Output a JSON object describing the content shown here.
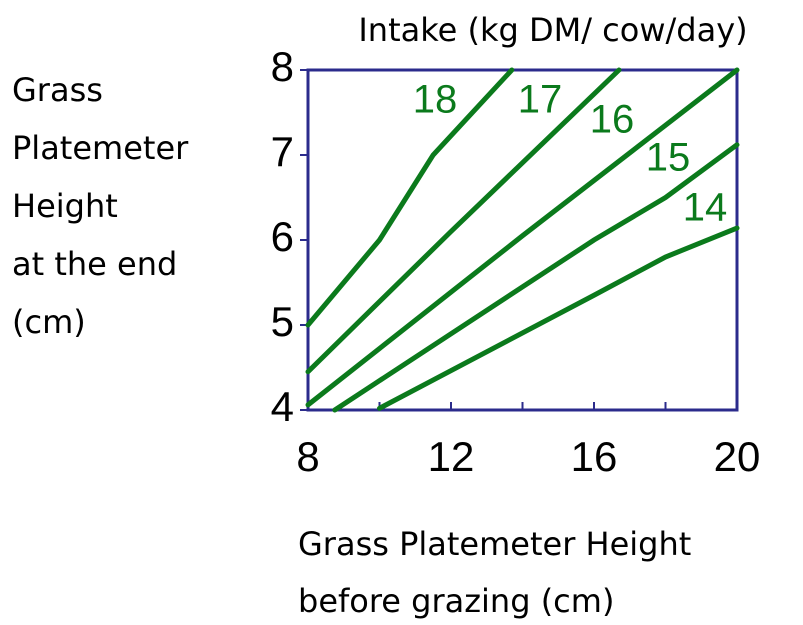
{
  "chart_data": {
    "type": "line",
    "title": "Intake (kg DM/ cow/day)",
    "ylabel": [
      "Grass",
      "Platemeter",
      "Height",
      "at the end",
      "(cm)"
    ],
    "xlabel": [
      "Grass Platemeter Height",
      "before grazing (cm)"
    ],
    "xlim": [
      8,
      20
    ],
    "ylim": [
      4,
      8
    ],
    "xticks": [
      8,
      12,
      16,
      20
    ],
    "xminor_ticks": [
      10,
      14,
      18
    ],
    "yticks": [
      4,
      5,
      6,
      7,
      8
    ],
    "series": [
      {
        "name": "18",
        "color": "#0b7a1c",
        "x": [
          8,
          10,
          11.5,
          13.7
        ],
        "values": [
          5,
          6,
          7,
          8
        ]
      },
      {
        "name": "17",
        "color": "#0b7a1c",
        "x": [
          8,
          12,
          16.7
        ],
        "values": [
          4.45,
          6.1,
          8
        ]
      },
      {
        "name": "16",
        "color": "#0b7a1c",
        "x": [
          8,
          14,
          20
        ],
        "values": [
          4.06,
          6.05,
          8
        ]
      },
      {
        "name": "15",
        "color": "#0b7a1c",
        "x": [
          8.75,
          16,
          18,
          20
        ],
        "values": [
          4,
          6,
          6.5,
          7.12
        ]
      },
      {
        "name": "14",
        "color": "#0b7a1c",
        "x": [
          10,
          16,
          18,
          20
        ],
        "values": [
          4.02,
          5.35,
          5.8,
          6.14
        ]
      }
    ]
  }
}
